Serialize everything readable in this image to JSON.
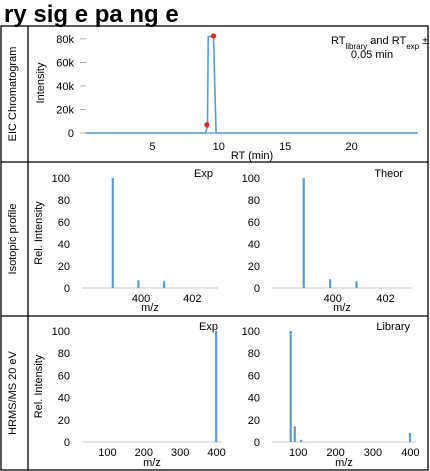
{
  "header": {
    "title_visible": "ry sig    e    pa    ng    e"
  },
  "colors": {
    "series": "#5b9bd5",
    "marker": "#e8261f",
    "frame": "#000000"
  },
  "chart_data": [
    {
      "type": "line",
      "row_label": "EIC Chromatogram",
      "ylabel": "Intensity",
      "xlabel": "RT (min)",
      "xlim": [
        0,
        25
      ],
      "ylim": [
        0,
        85000
      ],
      "x_ticks": [
        5,
        10,
        15,
        20
      ],
      "y_ticks": [
        0,
        20000,
        40000,
        60000,
        80000
      ],
      "y_tick_labels": [
        "0",
        "20k",
        "40k",
        "60k",
        "80k"
      ],
      "series": [
        {
          "x": [
            0,
            9.0,
            9.15,
            9.2,
            9.6,
            9.8,
            10.0,
            25
          ],
          "y": [
            0,
            0,
            6000,
            82000,
            82000,
            0,
            0,
            0
          ]
        }
      ],
      "markers": [
        {
          "x": 9.1,
          "y": 7000
        },
        {
          "x": 9.6,
          "y": 82500
        }
      ],
      "annotation": {
        "pre": "RT",
        "sub1": "library",
        "mid": " and RT",
        "sub2": "exp",
        "post": " ±",
        "line2": "0.05 min"
      }
    },
    {
      "type": "bar",
      "row_label": "Isotopic profile",
      "ylabel": "Rel. Intensity",
      "xlabel": "m/z",
      "panel_label": "Exp",
      "xlim": [
        397.7,
        403
      ],
      "ylim": [
        0,
        100
      ],
      "x_ticks": [
        400,
        402
      ],
      "y_ticks": [
        0,
        20,
        40,
        60,
        80,
        100
      ],
      "bars": [
        {
          "x": 398.9,
          "y": 100
        },
        {
          "x": 399.9,
          "y": 7
        },
        {
          "x": 400.9,
          "y": 6
        }
      ]
    },
    {
      "type": "bar",
      "row_label": "Isotopic profile",
      "ylabel": "",
      "xlabel": "m/z",
      "panel_label": "Theor",
      "xlim": [
        397.7,
        403
      ],
      "ylim": [
        0,
        100
      ],
      "x_ticks": [
        400,
        402
      ],
      "y_ticks": [
        0,
        20,
        40,
        60,
        80,
        100
      ],
      "bars": [
        {
          "x": 398.9,
          "y": 100
        },
        {
          "x": 399.9,
          "y": 8
        },
        {
          "x": 400.9,
          "y": 6
        }
      ]
    },
    {
      "type": "bar",
      "row_label": "HRMS/MS 20 eV",
      "ylabel": "Rel. Intensity",
      "xlabel": "m/z",
      "panel_label": "Exp",
      "xlim": [
        30,
        415
      ],
      "ylim": [
        0,
        100
      ],
      "x_ticks": [
        100,
        200,
        300,
        400
      ],
      "y_ticks": [
        0,
        20,
        40,
        60,
        80,
        100
      ],
      "bars": [
        {
          "x": 398.9,
          "y": 100
        }
      ]
    },
    {
      "type": "bar",
      "row_label": "HRMS/MS 20 eV",
      "ylabel": "",
      "xlabel": "m/z",
      "panel_label": "Library",
      "xlim": [
        30,
        415
      ],
      "ylim": [
        0,
        100
      ],
      "x_ticks": [
        100,
        200,
        300,
        400
      ],
      "y_ticks": [
        0,
        20,
        40,
        60,
        80,
        100
      ],
      "bars": [
        {
          "x": 80,
          "y": 100
        },
        {
          "x": 91,
          "y": 14
        },
        {
          "x": 108,
          "y": 2
        },
        {
          "x": 399,
          "y": 8
        }
      ]
    }
  ]
}
